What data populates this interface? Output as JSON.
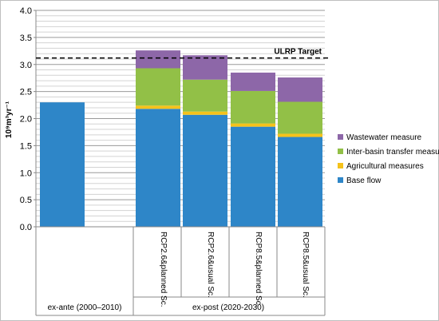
{
  "chart_data": {
    "type": "bar",
    "stacked": true,
    "ylabel": "10⁹m³yr⁻¹",
    "ylim": [
      0,
      4.0
    ],
    "yticks": [
      "0.0",
      "0.5",
      "1.0",
      "1.5",
      "2.0",
      "2.5",
      "3.0",
      "3.5",
      "4.0"
    ],
    "grid": true,
    "categories": [
      "",
      "RCP2.6&planned Sc.",
      "RCP2.6&usual Sc.",
      "RCP8.5&planned Sc.",
      "RCP8.5&usual Sc."
    ],
    "groups": [
      {
        "label": "ex-ante (2000–2010)"
      },
      {
        "label": "ex-post (2020-2030)"
      }
    ],
    "series": [
      {
        "name": "Base flow",
        "color": "#2e86c8",
        "values": [
          2.3,
          2.18,
          2.07,
          1.85,
          1.66
        ]
      },
      {
        "name": "Agricultural measures",
        "color": "#f5c21b",
        "values": [
          0,
          0.06,
          0.06,
          0.06,
          0.06
        ]
      },
      {
        "name": "Inter-basin transfer measure",
        "color": "#92c047",
        "values": [
          0,
          0.69,
          0.59,
          0.6,
          0.59
        ]
      },
      {
        "name": "Wastewater measure",
        "color": "#8d67a8",
        "values": [
          0,
          0.33,
          0.45,
          0.34,
          0.45
        ]
      }
    ],
    "reference_line": {
      "label": "ULRP Target",
      "value": 3.12
    },
    "legend_position": "right"
  }
}
